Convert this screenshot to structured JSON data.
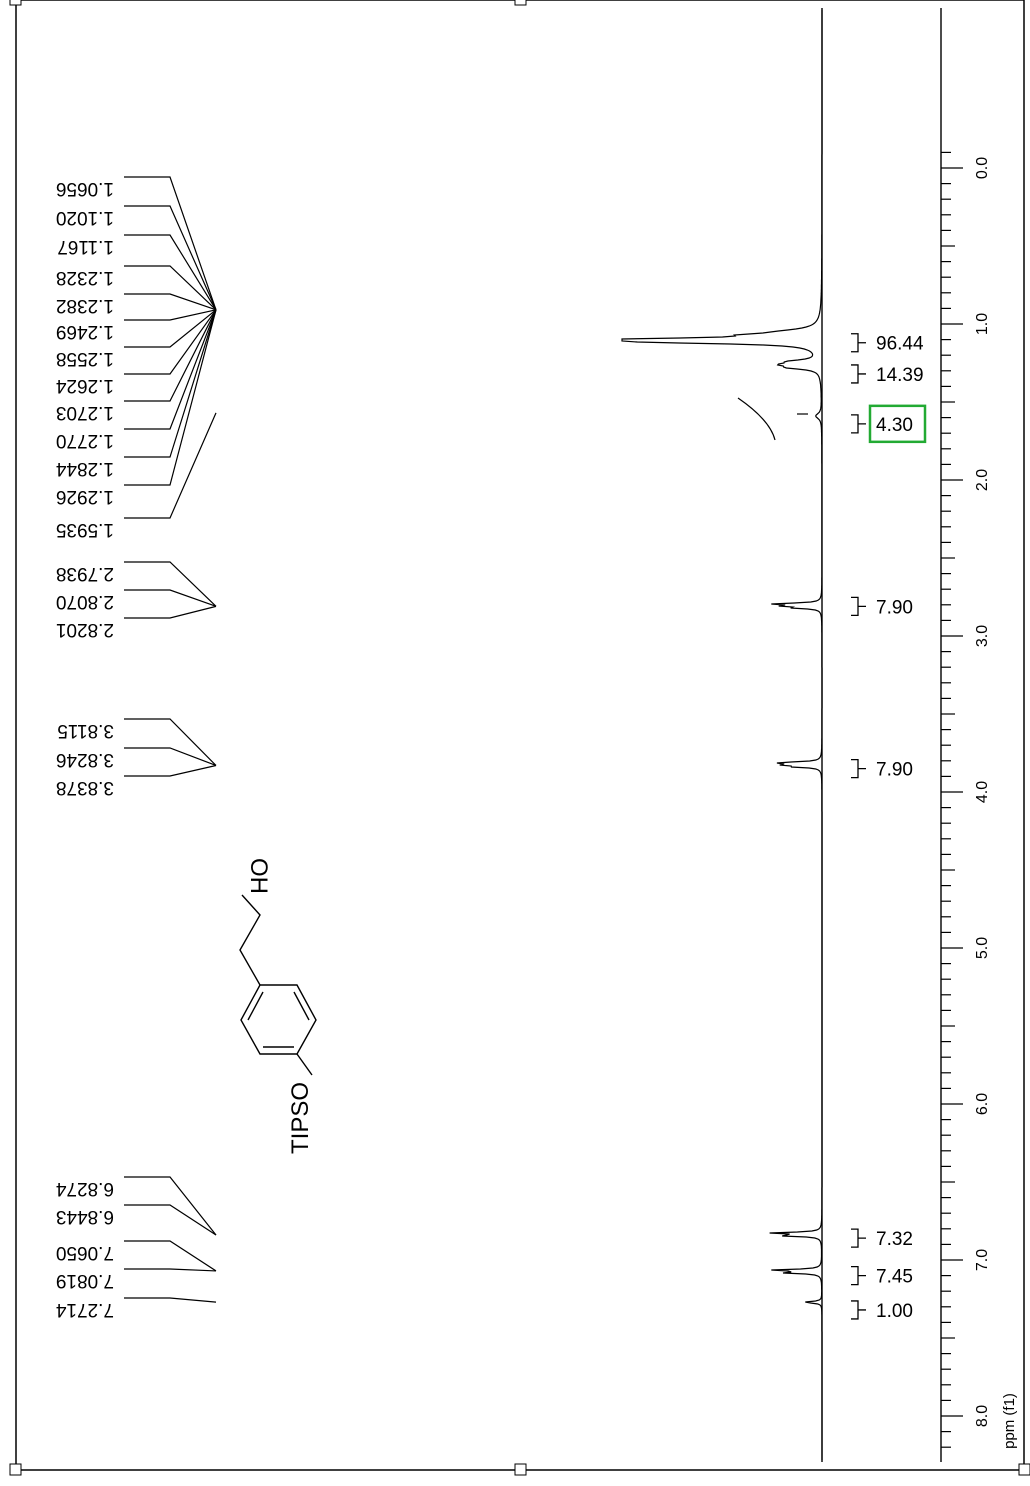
{
  "chart_data": {
    "type": "line",
    "title": "",
    "orientation": "rotated-90-clockwise",
    "x_axis": {
      "label": "ppm (f1)",
      "range": [
        -0.5,
        8.2
      ],
      "ticks": [
        {
          "value": 0,
          "label": "0.0"
        },
        {
          "value": 1,
          "label": "1.0"
        },
        {
          "value": 2,
          "label": "2.0"
        },
        {
          "value": 3,
          "label": "3.0"
        },
        {
          "value": 4,
          "label": "4.0"
        },
        {
          "value": 5,
          "label": "5.0"
        },
        {
          "value": 6,
          "label": "6.0"
        },
        {
          "value": 7,
          "label": "7.0"
        },
        {
          "value": 8,
          "label": "8.0"
        }
      ],
      "minor_step": 0.1
    },
    "peak_labels": [
      {
        "group": "aliphatic",
        "target_ppm": 1.05,
        "values": [
          "1.0656",
          "1.1020",
          "1.1167",
          "1.2328",
          "1.2382",
          "1.2469",
          "1.2558",
          "1.2624",
          "1.2703",
          "1.2770",
          "1.2844",
          "1.2926"
        ]
      },
      {
        "group": "aliphatic-2",
        "target_ppm": 1.57,
        "values": [
          "1.5935"
        ]
      },
      {
        "group": "ch2-ar",
        "target_ppm": 2.81,
        "values": [
          "2.7938",
          "2.8070",
          "2.8201"
        ]
      },
      {
        "group": "ch2-o",
        "target_ppm": 3.83,
        "values": [
          "3.8115",
          "3.8246",
          "3.8378"
        ]
      },
      {
        "group": "arom-1",
        "target_ppm": 6.84,
        "values": [
          "6.8274",
          "6.8443"
        ]
      },
      {
        "group": "arom-2",
        "target_ppm": 7.07,
        "values": [
          "7.0650",
          "7.0819"
        ]
      },
      {
        "group": "solvent",
        "target_ppm": 7.27,
        "values": [
          "7.2714"
        ]
      }
    ],
    "integrals": [
      {
        "ppm": 1.12,
        "value": "96.44",
        "highlighted": false
      },
      {
        "ppm": 1.32,
        "value": "14.39",
        "highlighted": false
      },
      {
        "ppm": 1.64,
        "value": "4.30",
        "highlighted": true
      },
      {
        "ppm": 2.81,
        "value": "7.90",
        "highlighted": false
      },
      {
        "ppm": 3.85,
        "value": "7.90",
        "highlighted": false
      },
      {
        "ppm": 6.86,
        "value": "7.32",
        "highlighted": false
      },
      {
        "ppm": 7.1,
        "value": "7.45",
        "highlighted": false
      },
      {
        "ppm": 7.32,
        "value": "1.00",
        "highlighted": false
      }
    ],
    "peaks": [
      {
        "ppm": 1.05,
        "height": 0.14,
        "width": 0.02
      },
      {
        "ppm": 1.07,
        "height": 0.2,
        "width": 0.01
      },
      {
        "ppm": 1.1,
        "height": 0.95,
        "width": 0.012
      },
      {
        "ppm": 1.117,
        "height": 0.55,
        "width": 0.012
      },
      {
        "ppm": 1.24,
        "height": 0.12,
        "width": 0.012
      },
      {
        "ppm": 1.26,
        "height": 0.15,
        "width": 0.012
      },
      {
        "ppm": 1.28,
        "height": 0.13,
        "width": 0.012
      },
      {
        "ppm": 1.59,
        "height": 0.03,
        "width": 0.02
      },
      {
        "ppm": 2.794,
        "height": 0.22,
        "width": 0.006
      },
      {
        "ppm": 2.807,
        "height": 0.16,
        "width": 0.006
      },
      {
        "ppm": 2.82,
        "height": 0.12,
        "width": 0.006
      },
      {
        "ppm": 3.812,
        "height": 0.2,
        "width": 0.006
      },
      {
        "ppm": 3.825,
        "height": 0.17,
        "width": 0.006
      },
      {
        "ppm": 3.838,
        "height": 0.13,
        "width": 0.006
      },
      {
        "ppm": 6.827,
        "height": 0.24,
        "width": 0.006
      },
      {
        "ppm": 6.844,
        "height": 0.2,
        "width": 0.006
      },
      {
        "ppm": 7.065,
        "height": 0.24,
        "width": 0.006
      },
      {
        "ppm": 7.082,
        "height": 0.18,
        "width": 0.006
      },
      {
        "ppm": 7.271,
        "height": 0.09,
        "width": 0.006
      }
    ]
  },
  "structure": {
    "left_group": "TIPSO",
    "right_group": "OH"
  },
  "colors": {
    "ink": "#000000",
    "highlight": "#22aa33",
    "background": "#ffffff"
  }
}
